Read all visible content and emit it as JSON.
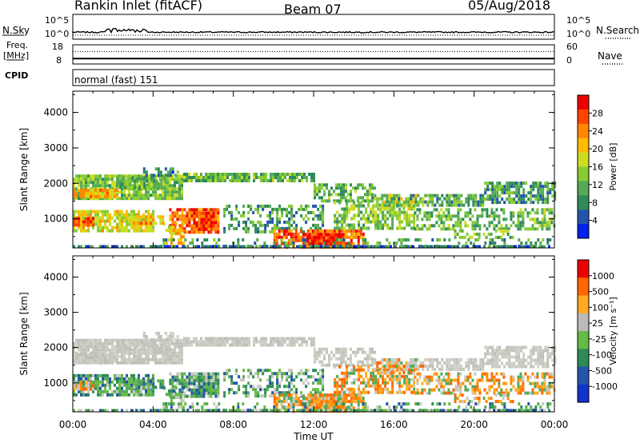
{
  "header": {
    "station": "Rankin Inlet (fitACF)",
    "beam": "Beam 07",
    "date": "05/Aug/2018"
  },
  "nsky_panel": {
    "left_label": "N.Sky",
    "right_label": "N.Search",
    "y_top": "10^5",
    "y_bottom": "10^0",
    "y_top_right": "10^5",
    "y_bottom_right": "10^0"
  },
  "freq_panel": {
    "left_label_1": "Freq.",
    "left_label_2": "[MHz]",
    "right_label": "Nave",
    "y_top_left": "18",
    "y_bottom_left": "8",
    "y_top_right": "60",
    "y_bottom_right": "0",
    "freq_mhz": 10.6,
    "nave": 40
  },
  "cpid": {
    "label": "CPID",
    "mode": "normal (fast) 151"
  },
  "chart_data": [
    {
      "type": "heatmap",
      "ylabel": "Slant Range [km]",
      "yticks": [
        "4000",
        "3000",
        "2000",
        "1000"
      ],
      "ylim": [
        180,
        4600
      ],
      "colorbar": {
        "label": "Power [dB]",
        "ticks": [
          "28",
          "24",
          "20",
          "16",
          "12",
          "8",
          "4"
        ],
        "range": [
          0,
          32
        ],
        "colors": [
          "#0022ee",
          "#2255aa",
          "#2e8b57",
          "#55aa55",
          "#88cc33",
          "#ccdd22",
          "#ffbb00",
          "#ff8800",
          "#ff4400",
          "#ee0000"
        ]
      }
    },
    {
      "type": "heatmap",
      "ylabel": "Slant Range [km]",
      "yticks": [
        "4000",
        "3000",
        "2000",
        "1000"
      ],
      "ylim": [
        180,
        4600
      ],
      "colorbar": {
        "label": "Velocity [m s⁻¹]",
        "ticks": [
          "1000",
          "500",
          "100",
          "25",
          "-25",
          "-100",
          "-500",
          "-1000"
        ],
        "colors": [
          "#1133cc",
          "#2255aa",
          "#2e8b57",
          "#66bb44",
          "#bbbbbb",
          "#ffaa22",
          "#ff6600",
          "#ee0000"
        ]
      }
    }
  ],
  "time_axis": {
    "xlabel": "Time UT",
    "ticks": [
      "00:00",
      "04:00",
      "08:00",
      "12:00",
      "16:00",
      "20:00",
      "00:00"
    ],
    "xlim_hours": [
      0,
      24
    ]
  }
}
